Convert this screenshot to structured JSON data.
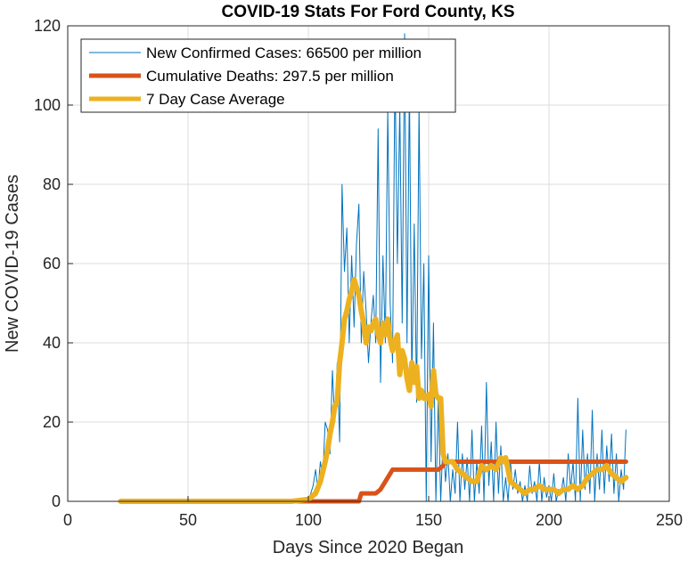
{
  "chart_data": {
    "type": "line",
    "title": "COVID-19 Stats For Ford County, KS",
    "xlabel": "Days Since 2020 Began",
    "ylabel": "New COVID-19 Cases",
    "xlim": [
      0,
      250
    ],
    "ylim": [
      0,
      120
    ],
    "xticks": [
      "0",
      "50",
      "100",
      "150",
      "200",
      "250"
    ],
    "yticks": [
      "0",
      "20",
      "40",
      "60",
      "80",
      "100",
      "120"
    ],
    "grid": true,
    "legend_position": "top-left",
    "series": [
      {
        "name": "New Confirmed Cases: 66500 per million",
        "color": "#0072BD",
        "x": [
          22,
          93,
          96,
          99,
          100,
          101,
          102,
          103,
          104,
          105,
          106,
          107,
          108,
          109,
          110,
          111,
          112,
          113,
          114,
          115,
          116,
          117,
          118,
          119,
          120,
          121,
          122,
          123,
          124,
          125,
          126,
          127,
          128,
          129,
          130,
          131,
          132,
          133,
          134,
          135,
          136,
          137,
          138,
          139,
          140,
          141,
          142,
          143,
          144,
          145,
          146,
          147,
          148,
          149,
          150,
          151,
          152,
          153,
          154,
          155,
          156,
          157,
          158,
          159,
          160,
          161,
          162,
          163,
          164,
          165,
          166,
          167,
          168,
          169,
          170,
          171,
          172,
          173,
          174,
          175,
          176,
          177,
          178,
          179,
          180,
          181,
          182,
          183,
          184,
          185,
          186,
          187,
          188,
          189,
          190,
          191,
          192,
          193,
          194,
          195,
          196,
          197,
          198,
          199,
          200,
          201,
          202,
          203,
          204,
          205,
          206,
          207,
          208,
          209,
          210,
          211,
          212,
          213,
          214,
          215,
          216,
          217,
          218,
          219,
          220,
          221,
          222,
          223,
          224,
          225,
          226,
          227,
          228,
          229,
          230,
          231,
          232
        ],
        "values": [
          0,
          0,
          0,
          1,
          0,
          2,
          4,
          8,
          3,
          10,
          6,
          20,
          18,
          12,
          33,
          20,
          35,
          15,
          80,
          58,
          69,
          40,
          62,
          44,
          65,
          75,
          40,
          58,
          48,
          35,
          45,
          52,
          40,
          94,
          30,
          62,
          40,
          99,
          50,
          35,
          110,
          60,
          100,
          45,
          118,
          40,
          105,
          30,
          70,
          25,
          100,
          36,
          60,
          0,
          62,
          10,
          45,
          0,
          26,
          0,
          16,
          5,
          12,
          0,
          8,
          2,
          20,
          0,
          12,
          3,
          11,
          0,
          18,
          0,
          10,
          2,
          19,
          0,
          30,
          4,
          15,
          0,
          20,
          2,
          14,
          0,
          6,
          0,
          10,
          3,
          8,
          2,
          5,
          0,
          4,
          0,
          9,
          2,
          5,
          0,
          10,
          0,
          6,
          1,
          4,
          0,
          7,
          0,
          3,
          2,
          6,
          0,
          12,
          3,
          10,
          0,
          26,
          0,
          18,
          3,
          12,
          2,
          23,
          0,
          12,
          3,
          18,
          2,
          14,
          5,
          17,
          2,
          12,
          0,
          8,
          3,
          18
        ]
      },
      {
        "name": "Cumulative Deaths: 297.5 per million",
        "color": "#D95319",
        "x": [
          22,
          121,
          122,
          128,
          129,
          130,
          131,
          132,
          133,
          134,
          135,
          150,
          151,
          152,
          153,
          154,
          155,
          156,
          157,
          158,
          160,
          170,
          180,
          200,
          220,
          232
        ],
        "values": [
          0,
          0,
          2,
          2,
          2.5,
          3,
          4,
          5,
          6,
          7,
          8,
          8,
          8,
          8,
          8,
          8,
          8.5,
          9,
          10,
          10,
          10,
          10,
          10,
          10,
          10,
          10
        ]
      },
      {
        "name": "7 Day Case Average",
        "color": "#EDB120",
        "x": [
          22,
          93,
          100,
          103,
          105,
          107,
          108,
          109,
          110,
          111,
          112,
          113,
          114,
          115,
          116,
          117,
          118,
          119,
          120,
          121,
          122,
          123,
          124,
          125,
          126,
          127,
          128,
          129,
          130,
          131,
          132,
          133,
          134,
          135,
          136,
          137,
          138,
          139,
          140,
          141,
          142,
          143,
          144,
          145,
          146,
          147,
          148,
          149,
          150,
          151,
          152,
          153,
          154,
          155,
          156,
          157,
          158,
          160,
          162,
          164,
          166,
          168,
          170,
          172,
          174,
          176,
          178,
          180,
          181,
          182,
          184,
          186,
          188,
          190,
          192,
          194,
          196,
          198,
          200,
          202,
          204,
          206,
          208,
          210,
          212,
          214,
          216,
          218,
          220,
          222,
          224,
          226,
          228,
          230,
          232
        ],
        "values": [
          0,
          0,
          0.5,
          2,
          5,
          10,
          13,
          17,
          20,
          24,
          25,
          35,
          40,
          46,
          48,
          51,
          53,
          56,
          54,
          52,
          48,
          45,
          40,
          44,
          43,
          45,
          46,
          42,
          40,
          45,
          42,
          46,
          41,
          38,
          40,
          42,
          32,
          38,
          36,
          31,
          28,
          35,
          30,
          34,
          26,
          28,
          26,
          26,
          27,
          24,
          33,
          27,
          26,
          26,
          12,
          10,
          10,
          10,
          8,
          7,
          6,
          5,
          5,
          9,
          8,
          9,
          8,
          11,
          10,
          11,
          5,
          4,
          3,
          2,
          3,
          3,
          4,
          3,
          3,
          3,
          2,
          3,
          3,
          4,
          3,
          4,
          6,
          7,
          8,
          8,
          9,
          7,
          6,
          5,
          6
        ]
      }
    ]
  }
}
